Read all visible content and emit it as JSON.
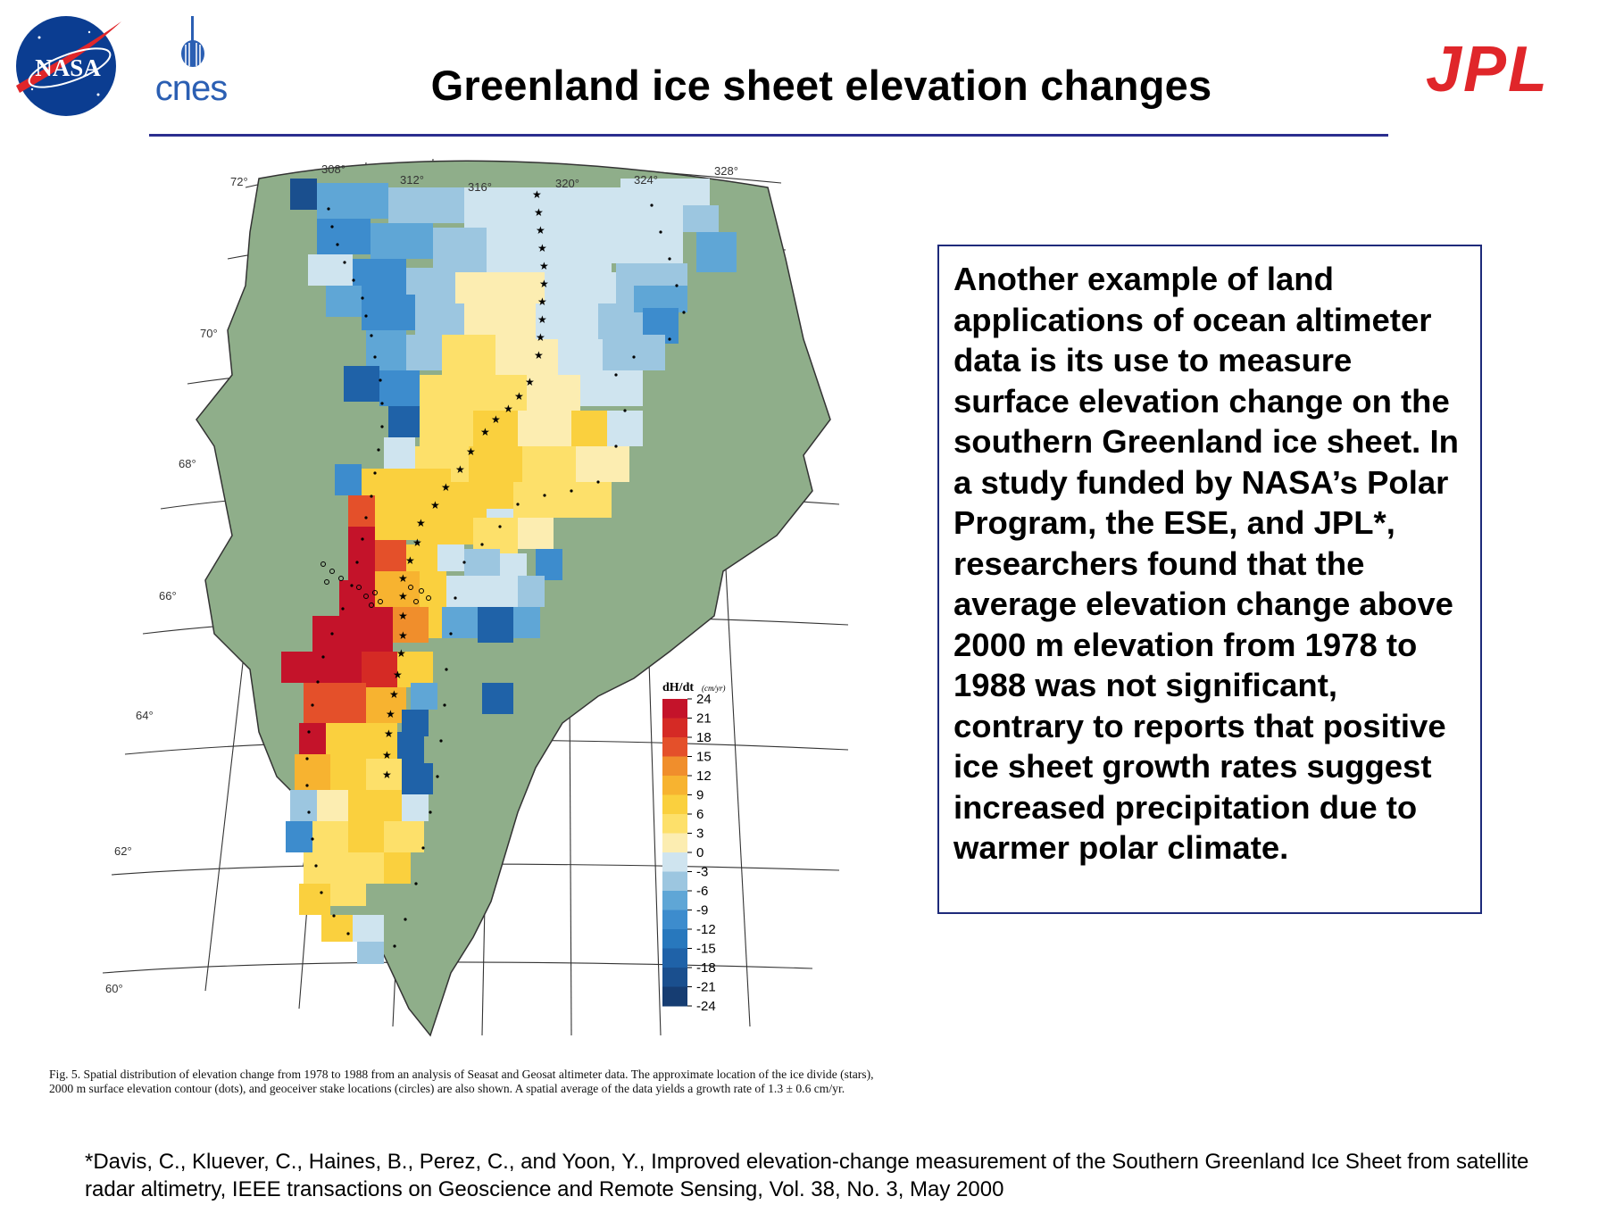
{
  "title": "Greenland ice sheet elevation changes",
  "logos": {
    "nasa": "NASA",
    "cnes": "cnes",
    "jpl": "JPL"
  },
  "colors": {
    "title_rule": "#2b2e8f",
    "textbox_border": "#1e2a7a",
    "jpl_red": "#e0262a",
    "nasa_blue": "#0b3d91",
    "land_green": "#8fae8a"
  },
  "map": {
    "latitude_labels": [
      "72°",
      "70°",
      "68°",
      "66°",
      "64°",
      "62°",
      "60°"
    ],
    "longitude_labels": [
      "308°",
      "312°",
      "316°",
      "320°",
      "324°",
      "328°"
    ],
    "legend": {
      "title": "dH/dt",
      "unit": "(cm/yr)",
      "ticks": [
        "24",
        "21",
        "18",
        "15",
        "12",
        "9",
        "6",
        "3",
        "0",
        "-3",
        "-6",
        "-9",
        "-12",
        "-15",
        "-18",
        "-21",
        "-24"
      ],
      "colors": [
        "#c4132a",
        "#d52a25",
        "#e4502a",
        "#f08e2c",
        "#f7b330",
        "#fad03e",
        "#fde06a",
        "#fcedb1",
        "#cfe4ef",
        "#9cc6e0",
        "#5fa6d6",
        "#3d8ccd",
        "#2878bd",
        "#1f62a8",
        "#1a4f8e",
        "#163d72"
      ]
    }
  },
  "textbox": {
    "body": "Another example of land applications of ocean altimeter data is its use to measure surface elevation change on the southern Greenland ice sheet.  In a study funded by NASA’s Polar Program, the ESE, and JPL*, researchers found that the average elevation change above 2000 m elevation from 1978 to 1988 was not significant, contrary to reports that positive ice sheet growth rates suggest increased precipitation due to warmer polar climate."
  },
  "caption": "Fig. 5.   Spatial distribution of elevation change from 1978 to 1988 from an analysis of Seasat and Geosat altimeter data. The approximate location of the ice divide (stars), 2000 m surface elevation contour (dots), and geoceiver stake locations (circles) are also shown. A spatial average of the data yields a growth rate of 1.3 ± 0.6 cm/yr.",
  "footnote": "*Davis, C., Kluever, C., Haines, B., Perez, C., and Yoon, Y., Improved elevation-change measurement of the Southern Greenland Ice Sheet from satellite radar altimetry, IEEE transactions on Geoscience and Remote Sensing, Vol. 38, No. 3, May 2000"
}
